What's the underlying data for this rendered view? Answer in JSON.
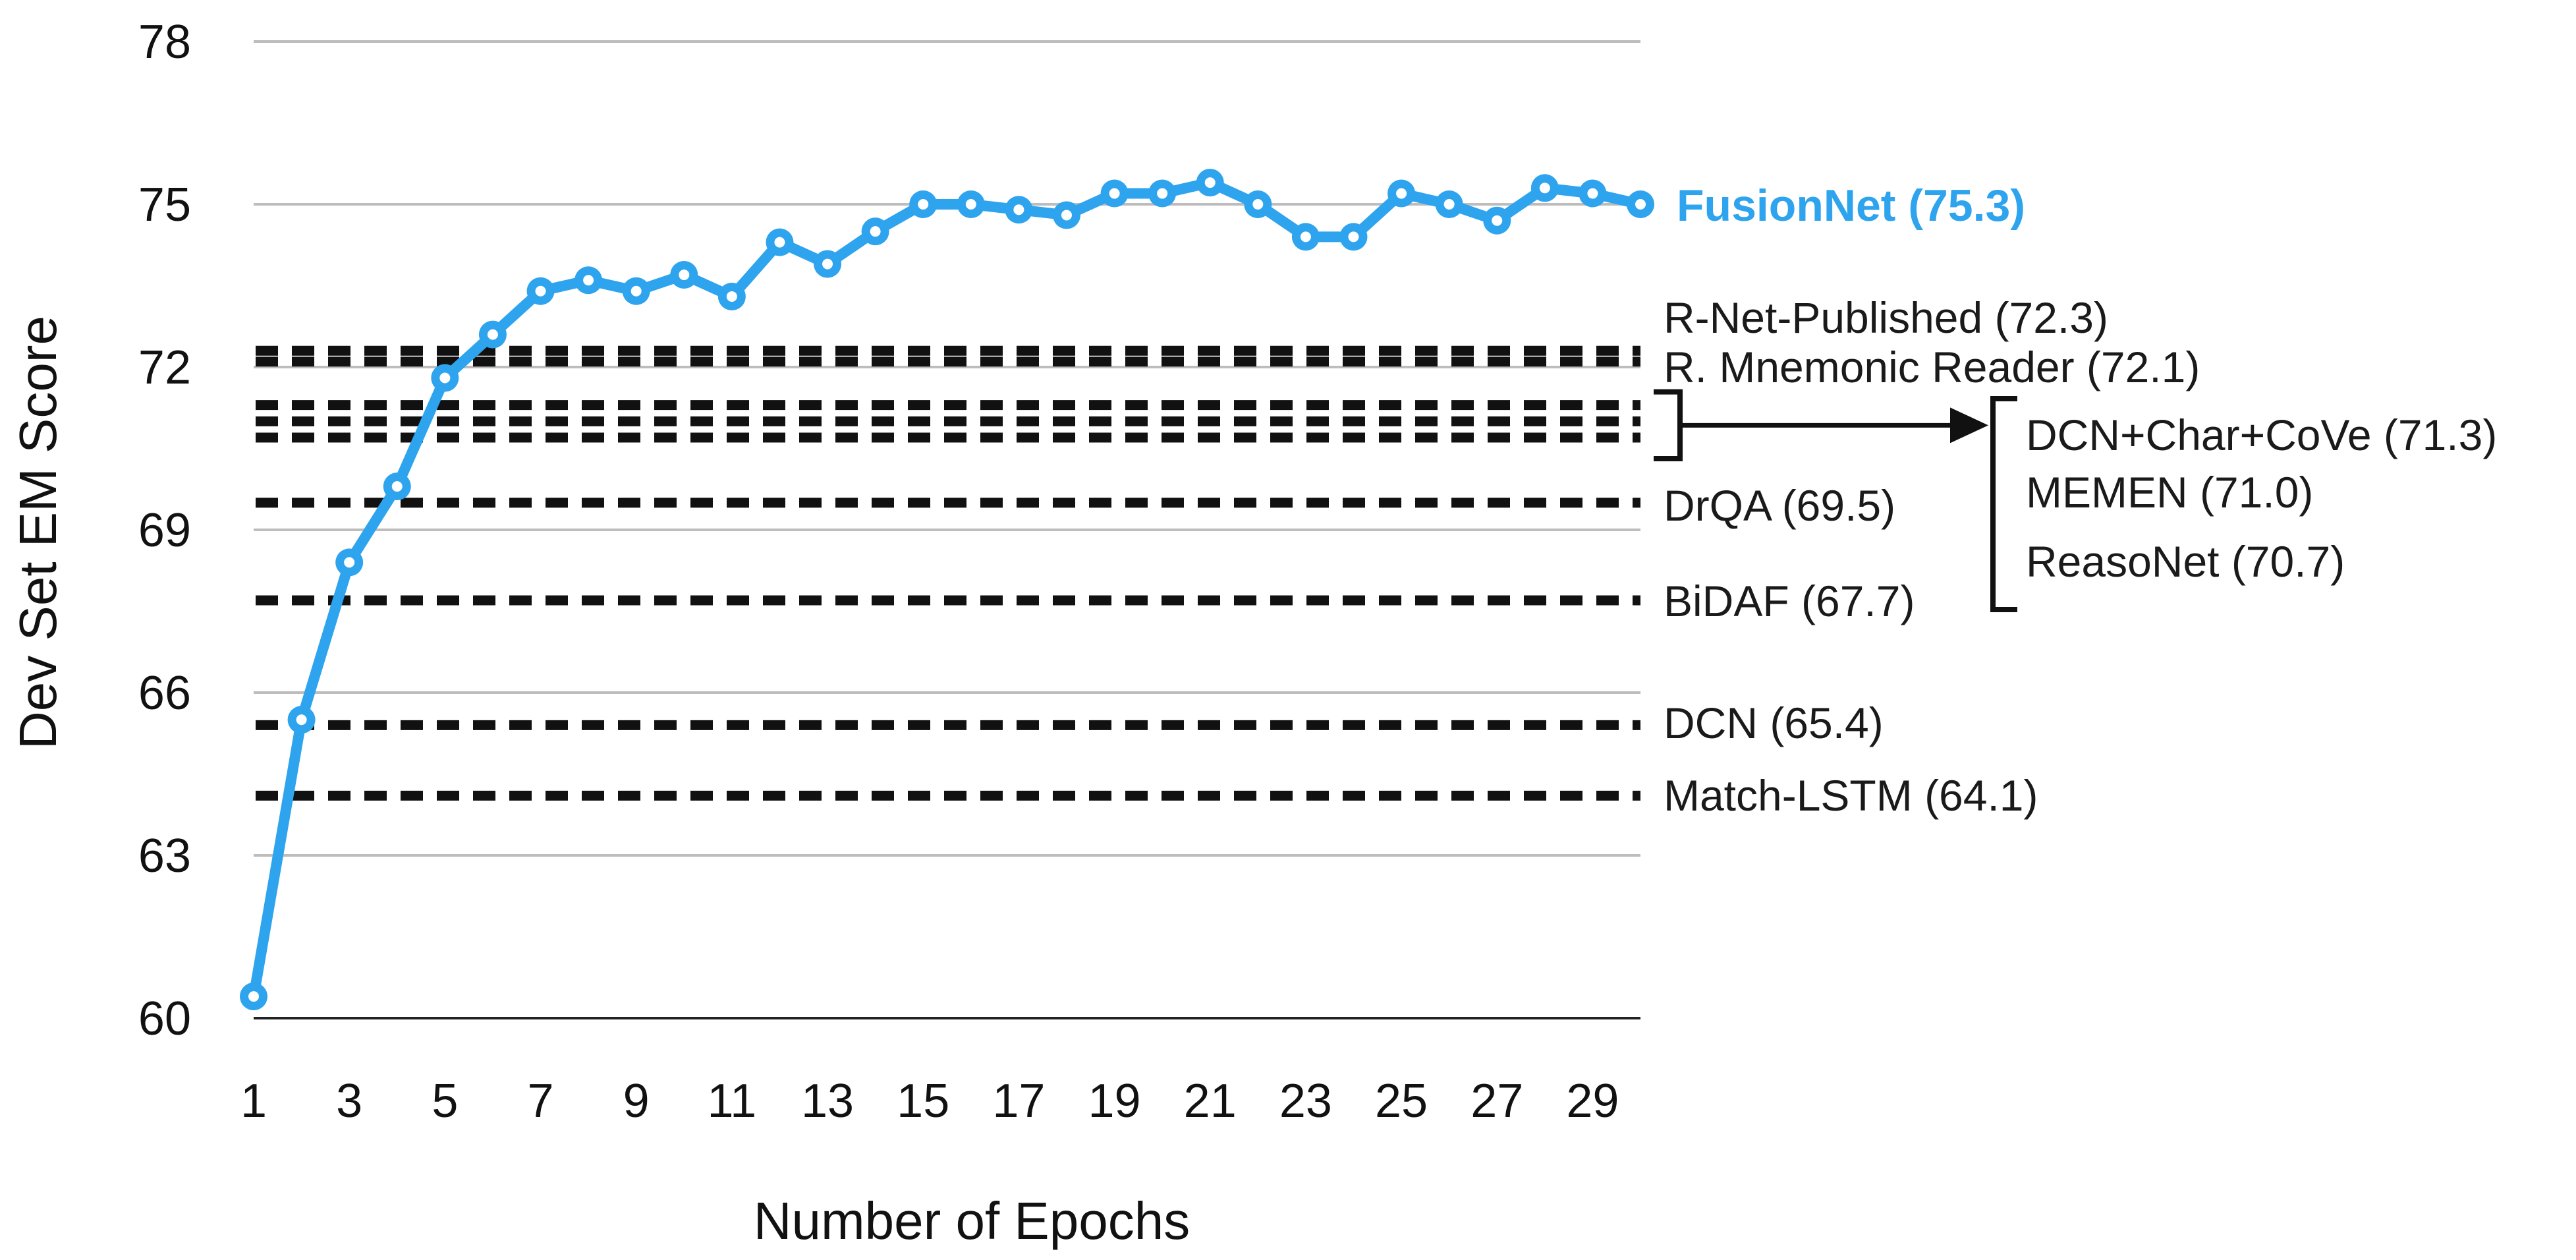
{
  "chart_data": {
    "type": "line",
    "xlabel": "Number of Epochs",
    "ylabel": "Dev Set EM Score",
    "xlim": [
      1,
      30
    ],
    "ylim": [
      60,
      78
    ],
    "x_ticks": [
      "1",
      "3",
      "5",
      "7",
      "9",
      "11",
      "13",
      "15",
      "17",
      "19",
      "21",
      "23",
      "25",
      "27",
      "29"
    ],
    "y_ticks": [
      "60",
      "63",
      "66",
      "69",
      "72",
      "75",
      "78"
    ],
    "grid": "horizontal",
    "series": [
      {
        "name": "FusionNet",
        "label": "FusionNet (75.3)",
        "color": "#2ea3ee",
        "x": [
          1,
          2,
          3,
          4,
          5,
          6,
          7,
          8,
          9,
          10,
          11,
          12,
          13,
          14,
          15,
          16,
          17,
          18,
          19,
          20,
          21,
          22,
          23,
          24,
          25,
          26,
          27,
          28,
          29,
          30
        ],
        "values": [
          60.4,
          65.5,
          68.4,
          69.8,
          71.8,
          72.6,
          73.4,
          73.6,
          73.4,
          73.7,
          73.3,
          74.3,
          73.9,
          74.5,
          75.0,
          75.0,
          74.9,
          74.8,
          75.2,
          75.2,
          75.4,
          75.0,
          74.4,
          74.4,
          75.2,
          75.0,
          74.7,
          75.3,
          75.2,
          75.0
        ]
      }
    ],
    "reference_lines": [
      {
        "name": "R-Net-Published",
        "value": 72.3,
        "label": "R-Net-Published (72.3)"
      },
      {
        "name": "R. Mnemonic Reader",
        "value": 72.1,
        "label": "R. Mnemonic Reader (72.1)"
      },
      {
        "name": "DCN+Char+CoVe",
        "value": 71.3,
        "label": "DCN+Char+CoVe (71.3)"
      },
      {
        "name": "MEMEN",
        "value": 71.0,
        "label": "MEMEN (71.0)"
      },
      {
        "name": "ReasoNet",
        "value": 70.7,
        "label": "ReasoNet (70.7)"
      },
      {
        "name": "DrQA",
        "value": 69.5,
        "label": "DrQA (69.5)"
      },
      {
        "name": "BiDAF",
        "value": 67.7,
        "label": "BiDAF (67.7)"
      },
      {
        "name": "DCN",
        "value": 65.4,
        "label": "DCN (65.4)"
      },
      {
        "name": "Match-LSTM",
        "value": 64.1,
        "label": "Match-LSTM (64.1)"
      }
    ]
  }
}
